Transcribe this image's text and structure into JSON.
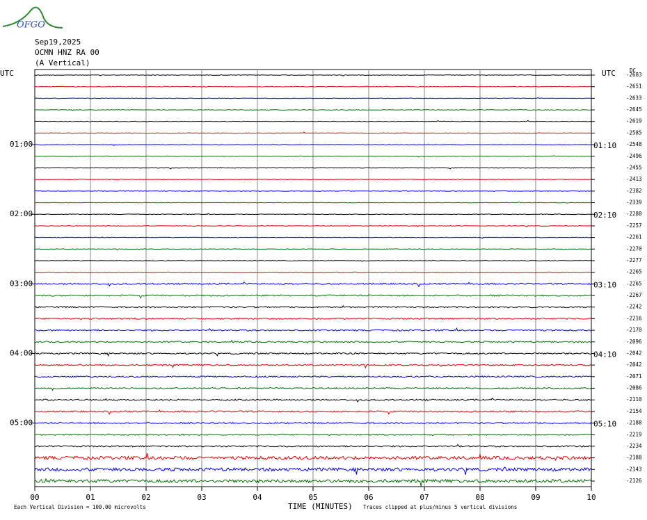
{
  "logo": "OFGO",
  "header": {
    "date": "Sep19,2025",
    "station": "OCMN HNZ RA 00",
    "component": "(A Vertical)"
  },
  "left_axis": {
    "title": "UTC",
    "labels": [
      "01:00",
      "02:00",
      "03:00",
      "04:00",
      "05:00"
    ]
  },
  "right_axis": {
    "title": "UTC",
    "labels": [
      "01:10",
      "02:10",
      "03:10",
      "04:10",
      "05:10"
    ]
  },
  "dc_title": "DC",
  "trace_colors": [
    "#000000",
    "#e00000",
    "#0000e0",
    "#007000"
  ],
  "dc_offsets": [
    "-2683",
    "-2651",
    "-2633",
    "-2645",
    "-2619",
    "-2585",
    "-2548",
    "-2496",
    "-2455",
    "-2413",
    "-2382",
    "-2339",
    "-2288",
    "-2257",
    "-2261",
    "-2270",
    "-2277",
    "-2265",
    "-2265",
    "-2267",
    "-2242",
    "-2216",
    "-2170",
    "-2096",
    "-2042",
    "-2042",
    "-2071",
    "-2086",
    "-2110",
    "-2154",
    "-2188",
    "-2219",
    "-2234",
    "-2188",
    "-2143",
    "-2126"
  ],
  "x_axis": {
    "ticks": [
      "00",
      "01",
      "02",
      "03",
      "04",
      "05",
      "06",
      "07",
      "08",
      "09",
      "10"
    ],
    "title": "TIME (MINUTES)"
  },
  "footer": {
    "scale_note": "Each Vertical Division =  100.00 microvolts",
    "clip_note": "Traces clipped at plus/minus 5 vertical divisions"
  }
}
